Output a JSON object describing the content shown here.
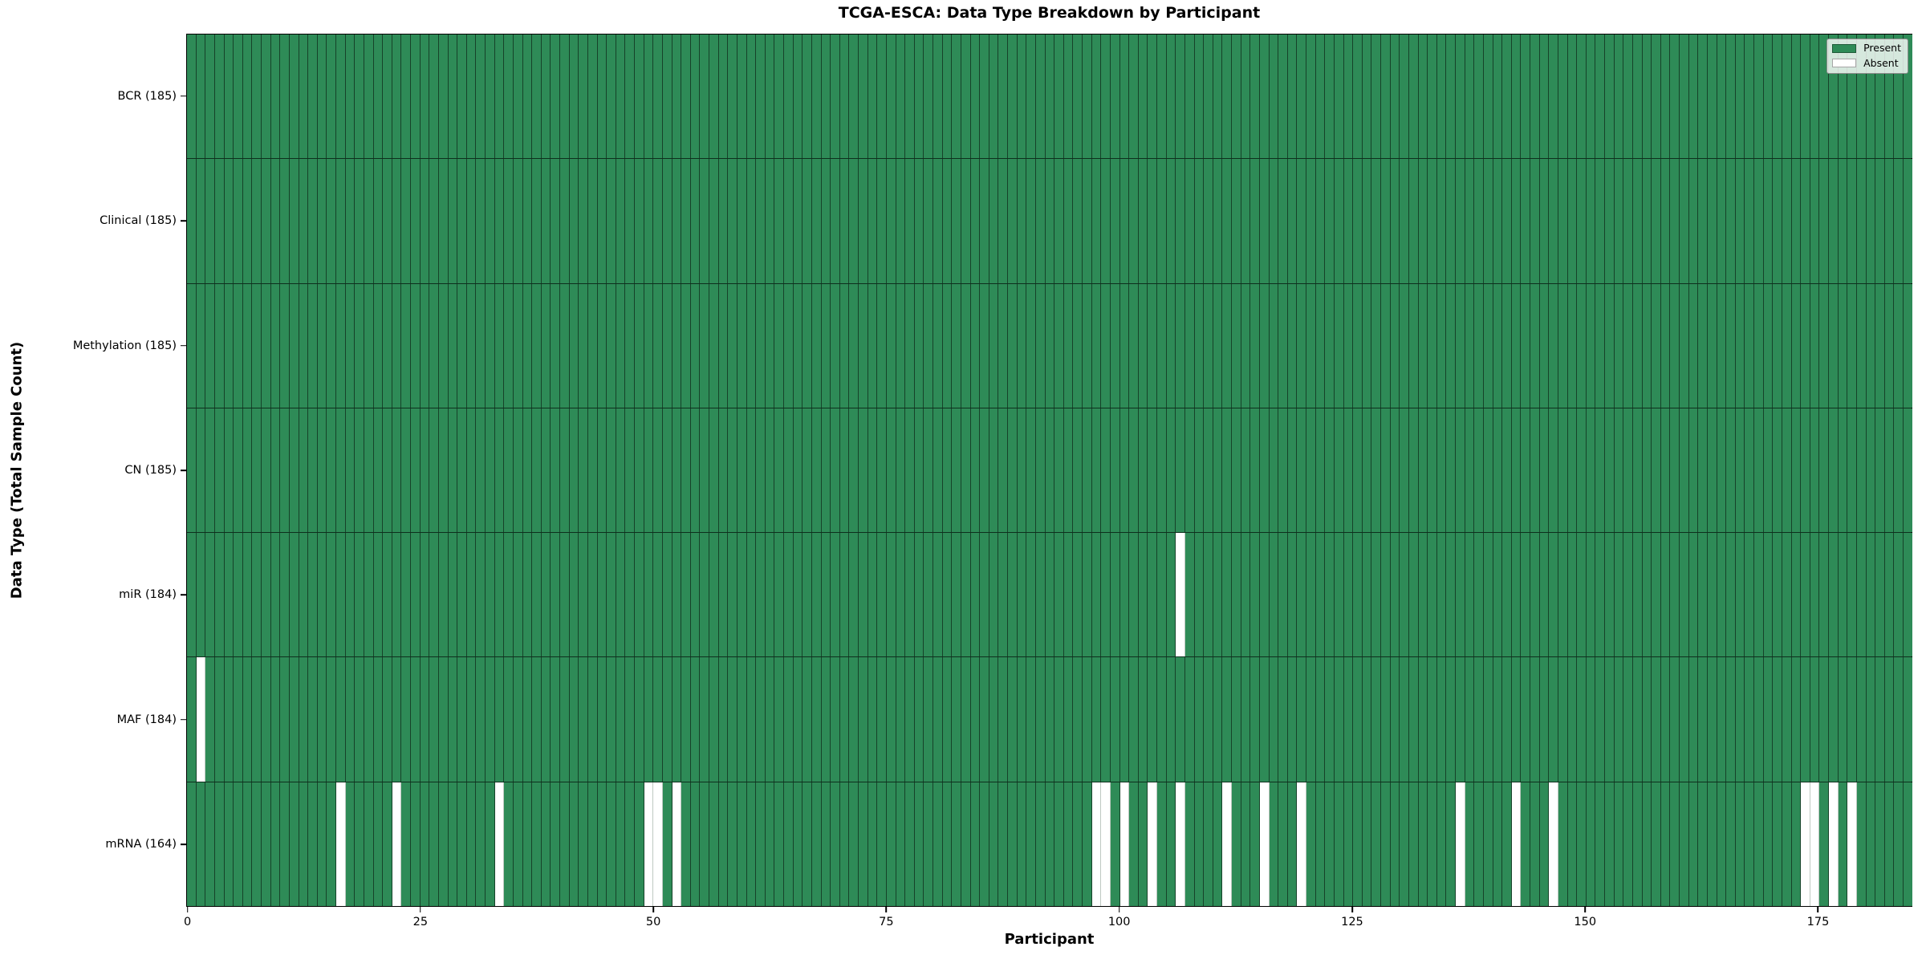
{
  "chart_data": {
    "type": "heatmap",
    "title": "TCGA-ESCA: Data Type Breakdown by Participant",
    "xlabel": "Participant",
    "ylabel": "Data Type (Total Sample Count)",
    "x_ticks": [
      0,
      25,
      50,
      75,
      100,
      125,
      150,
      175
    ],
    "xlim": [
      0,
      185
    ],
    "n_participants": 185,
    "grid": false,
    "legend": {
      "position": "upper right",
      "entries": [
        {
          "label": "Present",
          "color": "#2E8B57"
        },
        {
          "label": "Absent",
          "color": "#FFFFFF"
        }
      ]
    },
    "colors": {
      "present": "#2E8B57",
      "absent": "#FFFFFF",
      "cell_edge": "rgba(0,0,0,0.52)"
    },
    "rows": [
      {
        "label": "BCR (185)",
        "data_type": "BCR",
        "total": 185,
        "absent_participants": []
      },
      {
        "label": "Clinical (185)",
        "data_type": "Clinical",
        "total": 185,
        "absent_participants": []
      },
      {
        "label": "Methylation (185)",
        "data_type": "Methylation",
        "total": 185,
        "absent_participants": []
      },
      {
        "label": "CN (185)",
        "data_type": "CN",
        "total": 185,
        "absent_participants": []
      },
      {
        "label": "miR (184)",
        "data_type": "miR",
        "total": 184,
        "absent_participants": [
          107
        ]
      },
      {
        "label": "MAF (184)",
        "data_type": "MAF",
        "total": 184,
        "absent_participants": [
          2
        ]
      },
      {
        "label": "mRNA (164)",
        "data_type": "mRNA",
        "total": 164,
        "absent_participants": [
          17,
          23,
          34,
          50,
          51,
          53,
          98,
          99,
          101,
          104,
          107,
          112,
          116,
          120,
          137,
          143,
          147,
          174,
          175,
          177,
          179
        ]
      }
    ]
  }
}
